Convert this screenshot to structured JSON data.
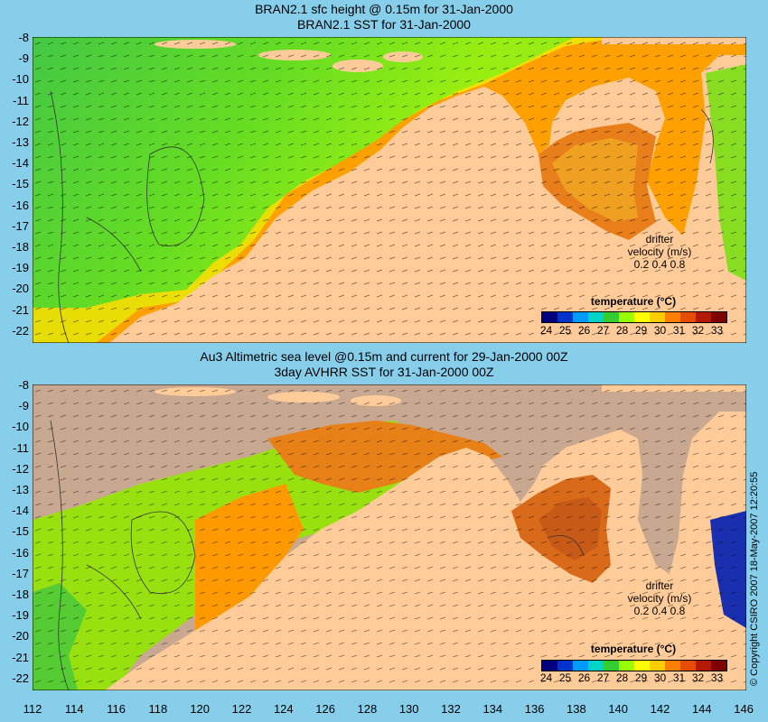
{
  "top_panel": {
    "title_line1": "BRAN2.1 sfc height @ 0.15m for 31-Jan-2000",
    "title_line2": "BRAN2.1 SST for 31-Jan-2000"
  },
  "bottom_panel": {
    "title_line1": "Au3 Altimetric sea level  @0.15m and current for 29-Jan-2000 00Z",
    "title_line2": "3day AVHRR SST for 31-Jan-2000 00Z"
  },
  "legend": {
    "title": "temperature (°C)",
    "labels": [
      "24",
      "25",
      "26",
      "27",
      "28",
      "29",
      "30",
      "31",
      "32",
      "33"
    ],
    "colors": [
      "#00007f",
      "#0033cc",
      "#0099ff",
      "#00d4c8",
      "#33cc33",
      "#99ff00",
      "#ffff00",
      "#ffcc00",
      "#ff8000",
      "#e64d00",
      "#b31a00",
      "#800000"
    ]
  },
  "drifter": {
    "label1": "drifter",
    "label2": "velocity (m/s)",
    "scale": "0.2  0.4  0.8"
  },
  "axes": {
    "y_ticks": [
      "-8",
      "-9",
      "-10",
      "-11",
      "-12",
      "-13",
      "-14",
      "-15",
      "-16",
      "-17",
      "-18",
      "-19",
      "-20",
      "-21",
      "-22"
    ],
    "x_ticks": [
      "112",
      "114",
      "116",
      "118",
      "120",
      "122",
      "124",
      "126",
      "128",
      "130",
      "132",
      "134",
      "136",
      "138",
      "140",
      "142",
      "144",
      "146"
    ]
  },
  "copyright": "© Copyright CSIRO 2007  18-May-2007 12:20:55"
}
